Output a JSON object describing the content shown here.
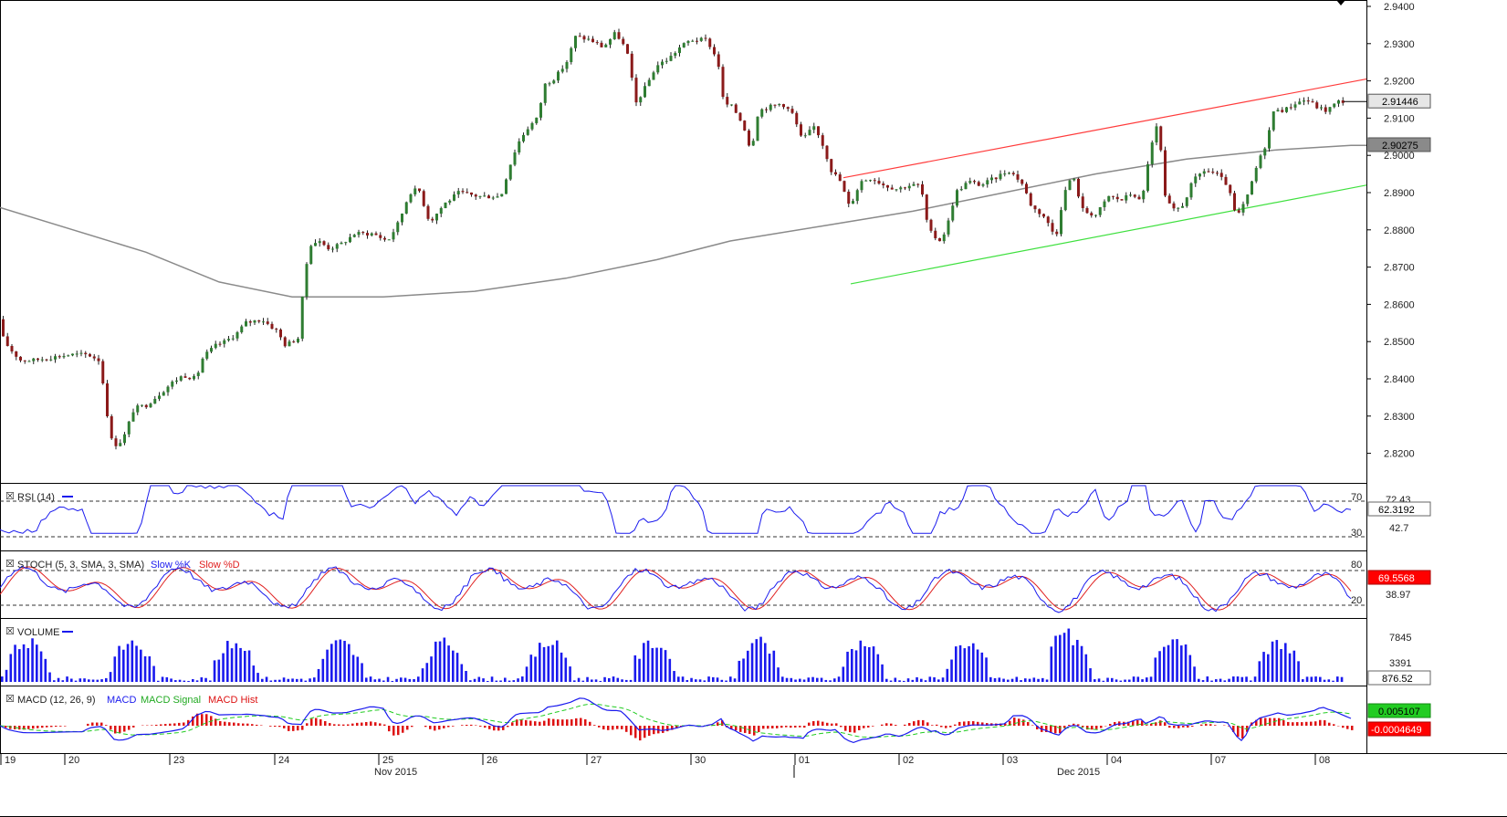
{
  "chart_data": {
    "type": "candlestick",
    "instrument_note": "",
    "price_axis": {
      "min": 2.814,
      "max": 2.94,
      "ticks": [
        "2.9400",
        "2.9300",
        "2.9200",
        "2.9100",
        "2.9000",
        "2.8900",
        "2.8800",
        "2.8700",
        "2.8600",
        "2.8500",
        "2.8400",
        "2.8300",
        "2.8200"
      ],
      "tick_values": [
        2.94,
        2.93,
        2.92,
        2.91,
        2.9,
        2.89,
        2.88,
        2.87,
        2.86,
        2.85,
        2.84,
        2.83,
        2.82
      ],
      "current_price_label": "2.91446",
      "ma_price_label": "2.90275",
      "current_price": 2.91446,
      "ma_price": 2.90275
    },
    "price_keypoints": [
      {
        "x": 0,
        "v": 2.856
      },
      {
        "x": 8,
        "v": 2.85
      },
      {
        "x": 18,
        "v": 2.847
      },
      {
        "x": 26,
        "v": 2.845
      },
      {
        "x": 40,
        "v": 2.845
      },
      {
        "x": 52,
        "v": 2.8455
      },
      {
        "x": 66,
        "v": 2.846
      },
      {
        "x": 80,
        "v": 2.8465
      },
      {
        "x": 100,
        "v": 2.8465
      },
      {
        "x": 112,
        "v": 2.845
      },
      {
        "x": 118,
        "v": 2.836
      },
      {
        "x": 124,
        "v": 2.824
      },
      {
        "x": 132,
        "v": 2.822
      },
      {
        "x": 140,
        "v": 2.825
      },
      {
        "x": 150,
        "v": 2.832
      },
      {
        "x": 164,
        "v": 2.833
      },
      {
        "x": 178,
        "v": 2.836
      },
      {
        "x": 192,
        "v": 2.839
      },
      {
        "x": 204,
        "v": 2.841
      },
      {
        "x": 218,
        "v": 2.84
      },
      {
        "x": 226,
        "v": 2.846
      },
      {
        "x": 240,
        "v": 2.849
      },
      {
        "x": 250,
        "v": 2.85
      },
      {
        "x": 262,
        "v": 2.852
      },
      {
        "x": 272,
        "v": 2.855
      },
      {
        "x": 290,
        "v": 2.856
      },
      {
        "x": 306,
        "v": 2.853
      },
      {
        "x": 316,
        "v": 2.849
      },
      {
        "x": 330,
        "v": 2.851
      },
      {
        "x": 336,
        "v": 2.865
      },
      {
        "x": 342,
        "v": 2.876
      },
      {
        "x": 352,
        "v": 2.877
      },
      {
        "x": 364,
        "v": 2.875
      },
      {
        "x": 376,
        "v": 2.876
      },
      {
        "x": 392,
        "v": 2.879
      },
      {
        "x": 412,
        "v": 2.879
      },
      {
        "x": 428,
        "v": 2.877
      },
      {
        "x": 440,
        "v": 2.882
      },
      {
        "x": 452,
        "v": 2.89
      },
      {
        "x": 462,
        "v": 2.891
      },
      {
        "x": 474,
        "v": 2.882
      },
      {
        "x": 490,
        "v": 2.887
      },
      {
        "x": 506,
        "v": 2.89
      },
      {
        "x": 528,
        "v": 2.889
      },
      {
        "x": 552,
        "v": 2.889
      },
      {
        "x": 560,
        "v": 2.896
      },
      {
        "x": 570,
        "v": 2.903
      },
      {
        "x": 580,
        "v": 2.907
      },
      {
        "x": 592,
        "v": 2.91
      },
      {
        "x": 600,
        "v": 2.919
      },
      {
        "x": 612,
        "v": 2.921
      },
      {
        "x": 624,
        "v": 2.925
      },
      {
        "x": 634,
        "v": 2.932
      },
      {
        "x": 650,
        "v": 2.931
      },
      {
        "x": 664,
        "v": 2.929
      },
      {
        "x": 678,
        "v": 2.933
      },
      {
        "x": 690,
        "v": 2.928
      },
      {
        "x": 700,
        "v": 2.914
      },
      {
        "x": 712,
        "v": 2.919
      },
      {
        "x": 722,
        "v": 2.924
      },
      {
        "x": 736,
        "v": 2.926
      },
      {
        "x": 748,
        "v": 2.929
      },
      {
        "x": 760,
        "v": 2.931
      },
      {
        "x": 778,
        "v": 2.931
      },
      {
        "x": 790,
        "v": 2.925
      },
      {
        "x": 796,
        "v": 2.914
      },
      {
        "x": 806,
        "v": 2.913
      },
      {
        "x": 818,
        "v": 2.908
      },
      {
        "x": 826,
        "v": 2.901
      },
      {
        "x": 834,
        "v": 2.912
      },
      {
        "x": 846,
        "v": 2.913
      },
      {
        "x": 860,
        "v": 2.914
      },
      {
        "x": 872,
        "v": 2.911
      },
      {
        "x": 882,
        "v": 2.904
      },
      {
        "x": 896,
        "v": 2.908
      },
      {
        "x": 906,
        "v": 2.902
      },
      {
        "x": 914,
        "v": 2.896
      },
      {
        "x": 924,
        "v": 2.893
      },
      {
        "x": 934,
        "v": 2.886
      },
      {
        "x": 946,
        "v": 2.893
      },
      {
        "x": 958,
        "v": 2.894
      },
      {
        "x": 972,
        "v": 2.892
      },
      {
        "x": 986,
        "v": 2.891
      },
      {
        "x": 1000,
        "v": 2.892
      },
      {
        "x": 1012,
        "v": 2.892
      },
      {
        "x": 1020,
        "v": 2.88
      },
      {
        "x": 1032,
        "v": 2.877
      },
      {
        "x": 1040,
        "v": 2.88
      },
      {
        "x": 1050,
        "v": 2.89
      },
      {
        "x": 1064,
        "v": 2.893
      },
      {
        "x": 1078,
        "v": 2.892
      },
      {
        "x": 1094,
        "v": 2.894
      },
      {
        "x": 1108,
        "v": 2.896
      },
      {
        "x": 1122,
        "v": 2.893
      },
      {
        "x": 1134,
        "v": 2.886
      },
      {
        "x": 1146,
        "v": 2.884
      },
      {
        "x": 1160,
        "v": 2.878
      },
      {
        "x": 1168,
        "v": 2.889
      },
      {
        "x": 1178,
        "v": 2.895
      },
      {
        "x": 1190,
        "v": 2.885
      },
      {
        "x": 1204,
        "v": 2.884
      },
      {
        "x": 1218,
        "v": 2.889
      },
      {
        "x": 1232,
        "v": 2.888
      },
      {
        "x": 1244,
        "v": 2.89
      },
      {
        "x": 1254,
        "v": 2.887
      },
      {
        "x": 1262,
        "v": 2.9
      },
      {
        "x": 1272,
        "v": 2.909
      },
      {
        "x": 1280,
        "v": 2.888
      },
      {
        "x": 1290,
        "v": 2.885
      },
      {
        "x": 1300,
        "v": 2.887
      },
      {
        "x": 1310,
        "v": 2.893
      },
      {
        "x": 1322,
        "v": 2.896
      },
      {
        "x": 1336,
        "v": 2.895
      },
      {
        "x": 1348,
        "v": 2.892
      },
      {
        "x": 1358,
        "v": 2.883
      },
      {
        "x": 1370,
        "v": 2.889
      },
      {
        "x": 1380,
        "v": 2.897
      },
      {
        "x": 1390,
        "v": 2.903
      },
      {
        "x": 1400,
        "v": 2.913
      },
      {
        "x": 1410,
        "v": 2.912
      },
      {
        "x": 1422,
        "v": 2.914
      },
      {
        "x": 1434,
        "v": 2.915
      },
      {
        "x": 1446,
        "v": 2.913
      },
      {
        "x": 1456,
        "v": 2.912
      },
      {
        "x": 1470,
        "v": 2.9145
      }
    ],
    "moving_average_keypoints": [
      {
        "x": 0,
        "v": 2.886
      },
      {
        "x": 80,
        "v": 2.88
      },
      {
        "x": 160,
        "v": 2.874
      },
      {
        "x": 240,
        "v": 2.866
      },
      {
        "x": 320,
        "v": 2.862
      },
      {
        "x": 420,
        "v": 2.862
      },
      {
        "x": 520,
        "v": 2.8635
      },
      {
        "x": 620,
        "v": 2.867
      },
      {
        "x": 720,
        "v": 2.872
      },
      {
        "x": 800,
        "v": 2.877
      },
      {
        "x": 900,
        "v": 2.881
      },
      {
        "x": 1000,
        "v": 2.885
      },
      {
        "x": 1100,
        "v": 2.89
      },
      {
        "x": 1200,
        "v": 2.895
      },
      {
        "x": 1300,
        "v": 2.899
      },
      {
        "x": 1400,
        "v": 2.9015
      },
      {
        "x": 1480,
        "v": 2.9027
      },
      {
        "x": 1497,
        "v": 2.9027
      }
    ],
    "channel_upper": {
      "x1": 924,
      "v1": 2.894,
      "x2": 1497,
      "v2": 2.9205
    },
    "channel_lower": {
      "x1": 932,
      "v1": 2.8655,
      "x2": 1497,
      "v2": 2.892
    },
    "x_axis": {
      "days": [
        {
          "label": "19",
          "x": 4
        },
        {
          "label": "20",
          "x": 74
        },
        {
          "label": "23",
          "x": 189
        },
        {
          "label": "24",
          "x": 304
        },
        {
          "label": "25",
          "x": 418
        },
        {
          "label": "26",
          "x": 532
        },
        {
          "label": "27",
          "x": 646
        },
        {
          "label": "30",
          "x": 760
        },
        {
          "label": "01",
          "x": 874
        },
        {
          "label": "02",
          "x": 988
        },
        {
          "label": "03",
          "x": 1102
        },
        {
          "label": "04",
          "x": 1216
        },
        {
          "label": "07",
          "x": 1330
        },
        {
          "label": "08",
          "x": 1444
        }
      ],
      "months": [
        {
          "label": "Nov 2015",
          "x": 410
        },
        {
          "label": "Dec 2015",
          "x": 1158
        }
      ]
    },
    "panels": {
      "rsi": {
        "title": "RSI (14)",
        "levels": [
          "70",
          "30"
        ],
        "right_labels": [
          "72.43",
          "42.7"
        ],
        "current_label": "62.3192"
      },
      "stoch": {
        "title": "STOCH (5, 3, SMA, 3, SMA)",
        "series_k": "Slow %K",
        "series_d": "Slow %D",
        "levels": [
          "80",
          "20"
        ],
        "right_labels": [
          "38.97"
        ],
        "current_label": "69.5568",
        "k_color": "#1a1aee",
        "d_color": "#e02020"
      },
      "volume": {
        "title": "VOLUME",
        "right_labels": [
          "7845",
          "3391"
        ],
        "current_label": "876.52"
      },
      "macd": {
        "title": "MACD (12, 26, 9)",
        "series": [
          "MACD",
          "MACD Signal",
          "MACD Hist"
        ],
        "right_labels": [
          "0.005107",
          "-0.0004649"
        ],
        "macd_color": "#1a1aee",
        "signal_color": "#22cc22",
        "hist_color": "#dd1111"
      }
    },
    "colors": {
      "up_body": "#2f7d32",
      "down_body": "#8b1a1a",
      "wick": "#222222",
      "ma": "#8a8a8a",
      "upper_channel": "#ff3b3b",
      "lower_channel": "#3fe03f",
      "indicator": "#1a1aee"
    }
  }
}
